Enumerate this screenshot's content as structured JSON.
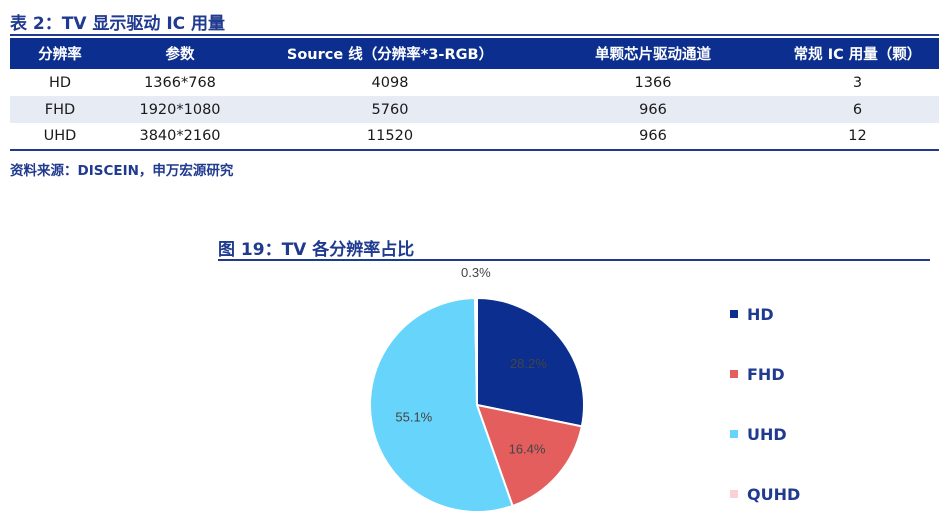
{
  "table": {
    "title": "表 2：TV 显示驱动 IC 用量",
    "headers": [
      "分辨率",
      "参数",
      "Source 线（分辨率*3-RGB）",
      "单颗芯片驱动通道",
      "常规 IC 用量（颗）"
    ],
    "rows": [
      [
        "HD",
        "1366*768",
        "4098",
        "1366",
        "3"
      ],
      [
        "FHD",
        "1920*1080",
        "5760",
        "966",
        "6"
      ],
      [
        "UHD",
        "3840*2160",
        "11520",
        "966",
        "12"
      ]
    ],
    "source": "资料来源：DISCEIN，申万宏源研究"
  },
  "chart_data": {
    "type": "pie",
    "title": "图 19：TV 各分辨率占比",
    "categories": [
      "HD",
      "FHD",
      "UHD",
      "QUHD"
    ],
    "values": [
      28.2,
      16.4,
      55.1,
      0.3
    ],
    "labels": [
      "28.2%",
      "16.4%",
      "55.1%",
      "0.3%"
    ],
    "colors": [
      "#0b2e8f",
      "#e45e5e",
      "#66d4fb",
      "#f9d1d5"
    ],
    "legend_position": "right"
  }
}
